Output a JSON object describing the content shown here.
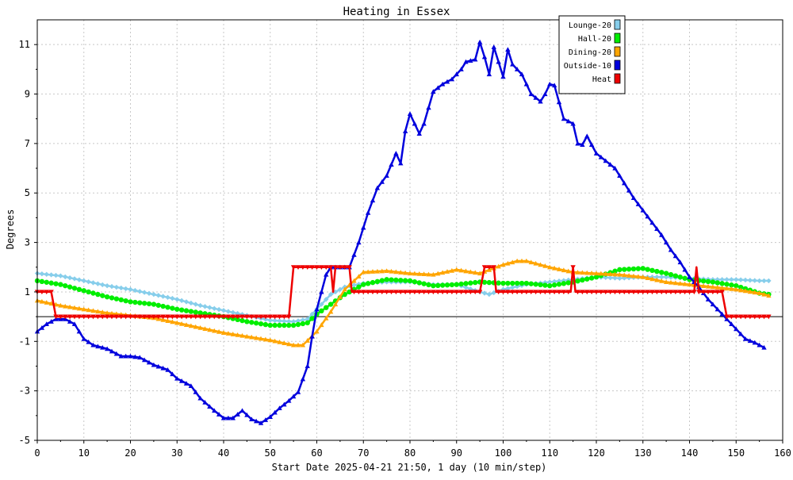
{
  "chart_data": {
    "type": "line",
    "title": "Heating in Essex",
    "xlabel": "Start Date 2025-04-21 21:50, 1 day (10 min/step)",
    "ylabel": "Degrees",
    "xlim": [
      0,
      160
    ],
    "ylim": [
      -5,
      12
    ],
    "x_ticks": [
      0,
      10,
      20,
      30,
      40,
      50,
      60,
      70,
      80,
      90,
      100,
      110,
      120,
      130,
      140,
      150,
      160
    ],
    "y_ticks": [
      -5,
      -3,
      -1,
      1,
      3,
      5,
      7,
      9,
      11
    ],
    "grid": true,
    "zero_line": true,
    "legend_position": "top-right",
    "series": [
      {
        "name": "Lounge-20",
        "color": "#87ceeb",
        "marker": "diamond",
        "points": [
          [
            0,
            1.75
          ],
          [
            5,
            1.65
          ],
          [
            10,
            1.45
          ],
          [
            15,
            1.25
          ],
          [
            20,
            1.1
          ],
          [
            25,
            0.9
          ],
          [
            30,
            0.7
          ],
          [
            35,
            0.45
          ],
          [
            40,
            0.25
          ],
          [
            45,
            0.05
          ],
          [
            50,
            -0.15
          ],
          [
            55,
            -0.2
          ],
          [
            58,
            -0.1
          ],
          [
            60,
            0.3
          ],
          [
            63,
            0.9
          ],
          [
            66,
            1.2
          ],
          [
            70,
            1.35
          ],
          [
            75,
            1.4
          ],
          [
            80,
            1.4
          ],
          [
            85,
            1.3
          ],
          [
            90,
            1.3
          ],
          [
            95,
            1.0
          ],
          [
            97,
            0.9
          ],
          [
            100,
            1.1
          ],
          [
            105,
            1.3
          ],
          [
            110,
            1.4
          ],
          [
            115,
            1.5
          ],
          [
            120,
            1.6
          ],
          [
            125,
            1.55
          ],
          [
            130,
            1.6
          ],
          [
            135,
            1.6
          ],
          [
            140,
            1.55
          ],
          [
            145,
            1.5
          ],
          [
            150,
            1.5
          ],
          [
            155,
            1.45
          ],
          [
            157,
            1.45
          ]
        ]
      },
      {
        "name": "Hall-20",
        "color": "#00ee00",
        "marker": "circle",
        "points": [
          [
            0,
            1.45
          ],
          [
            5,
            1.3
          ],
          [
            10,
            1.05
          ],
          [
            15,
            0.8
          ],
          [
            20,
            0.6
          ],
          [
            25,
            0.5
          ],
          [
            30,
            0.3
          ],
          [
            35,
            0.15
          ],
          [
            40,
            0.0
          ],
          [
            45,
            -0.2
          ],
          [
            50,
            -0.35
          ],
          [
            55,
            -0.35
          ],
          [
            58,
            -0.25
          ],
          [
            60,
            0.1
          ],
          [
            63,
            0.5
          ],
          [
            66,
            0.9
          ],
          [
            70,
            1.3
          ],
          [
            75,
            1.5
          ],
          [
            80,
            1.45
          ],
          [
            85,
            1.25
          ],
          [
            90,
            1.3
          ],
          [
            95,
            1.4
          ],
          [
            100,
            1.35
          ],
          [
            105,
            1.35
          ],
          [
            110,
            1.25
          ],
          [
            115,
            1.4
          ],
          [
            120,
            1.6
          ],
          [
            125,
            1.9
          ],
          [
            130,
            1.95
          ],
          [
            135,
            1.75
          ],
          [
            140,
            1.5
          ],
          [
            145,
            1.4
          ],
          [
            150,
            1.25
          ],
          [
            155,
            0.95
          ],
          [
            157,
            0.9
          ]
        ]
      },
      {
        "name": "Dining-20",
        "color": "#ffa500",
        "marker": "triangle",
        "points": [
          [
            0,
            0.65
          ],
          [
            5,
            0.45
          ],
          [
            10,
            0.3
          ],
          [
            15,
            0.15
          ],
          [
            20,
            0.05
          ],
          [
            25,
            -0.05
          ],
          [
            30,
            -0.25
          ],
          [
            35,
            -0.45
          ],
          [
            40,
            -0.65
          ],
          [
            45,
            -0.8
          ],
          [
            50,
            -0.95
          ],
          [
            55,
            -1.15
          ],
          [
            57,
            -1.15
          ],
          [
            60,
            -0.6
          ],
          [
            63,
            0.2
          ],
          [
            66,
            1.1
          ],
          [
            70,
            1.8
          ],
          [
            75,
            1.85
          ],
          [
            80,
            1.75
          ],
          [
            85,
            1.7
          ],
          [
            90,
            1.9
          ],
          [
            95,
            1.75
          ],
          [
            100,
            2.1
          ],
          [
            103,
            2.25
          ],
          [
            105,
            2.25
          ],
          [
            110,
            2.0
          ],
          [
            115,
            1.8
          ],
          [
            120,
            1.75
          ],
          [
            125,
            1.7
          ],
          [
            130,
            1.6
          ],
          [
            135,
            1.4
          ],
          [
            140,
            1.3
          ],
          [
            145,
            1.2
          ],
          [
            150,
            1.1
          ],
          [
            155,
            0.95
          ],
          [
            157,
            0.85
          ]
        ]
      },
      {
        "name": "Outside-10",
        "color": "#0000dd",
        "marker": "triangle",
        "points": [
          [
            0,
            -0.6
          ],
          [
            2,
            -0.3
          ],
          [
            4,
            -0.1
          ],
          [
            6,
            -0.1
          ],
          [
            8,
            -0.3
          ],
          [
            10,
            -0.9
          ],
          [
            12,
            -1.15
          ],
          [
            15,
            -1.3
          ],
          [
            18,
            -1.6
          ],
          [
            20,
            -1.6
          ],
          [
            22,
            -1.65
          ],
          [
            25,
            -1.95
          ],
          [
            28,
            -2.15
          ],
          [
            30,
            -2.5
          ],
          [
            33,
            -2.8
          ],
          [
            35,
            -3.3
          ],
          [
            38,
            -3.8
          ],
          [
            40,
            -4.1
          ],
          [
            42,
            -4.1
          ],
          [
            44,
            -3.8
          ],
          [
            46,
            -4.15
          ],
          [
            48,
            -4.3
          ],
          [
            50,
            -4.05
          ],
          [
            52,
            -3.7
          ],
          [
            54,
            -3.4
          ],
          [
            56,
            -3.05
          ],
          [
            58,
            -2.0
          ],
          [
            59,
            -0.8
          ],
          [
            60,
            0.3
          ],
          [
            61,
            1.0
          ],
          [
            62,
            1.7
          ],
          [
            63,
            2.0
          ],
          [
            65,
            2.0
          ],
          [
            67,
            2.0
          ],
          [
            69,
            3.0
          ],
          [
            71,
            4.2
          ],
          [
            73,
            5.2
          ],
          [
            75,
            5.7
          ],
          [
            77,
            6.6
          ],
          [
            78,
            6.2
          ],
          [
            79,
            7.5
          ],
          [
            80,
            8.2
          ],
          [
            82,
            7.4
          ],
          [
            83,
            7.8
          ],
          [
            85,
            9.1
          ],
          [
            87,
            9.4
          ],
          [
            89,
            9.6
          ],
          [
            91,
            10.0
          ],
          [
            92,
            10.3
          ],
          [
            94,
            10.4
          ],
          [
            95,
            11.1
          ],
          [
            96,
            10.5
          ],
          [
            97,
            9.8
          ],
          [
            98,
            10.9
          ],
          [
            100,
            9.7
          ],
          [
            101,
            10.8
          ],
          [
            102,
            10.2
          ],
          [
            104,
            9.8
          ],
          [
            106,
            9.0
          ],
          [
            108,
            8.7
          ],
          [
            109,
            9.0
          ],
          [
            110,
            9.4
          ],
          [
            111,
            9.35
          ],
          [
            113,
            8.0
          ],
          [
            115,
            7.8
          ],
          [
            116,
            7.0
          ],
          [
            117,
            6.95
          ],
          [
            118,
            7.3
          ],
          [
            120,
            6.6
          ],
          [
            122,
            6.3
          ],
          [
            124,
            6.0
          ],
          [
            126,
            5.4
          ],
          [
            128,
            4.8
          ],
          [
            130,
            4.3
          ],
          [
            132,
            3.8
          ],
          [
            134,
            3.3
          ],
          [
            136,
            2.7
          ],
          [
            138,
            2.2
          ],
          [
            140,
            1.6
          ],
          [
            142,
            1.2
          ],
          [
            144,
            0.7
          ],
          [
            146,
            0.3
          ],
          [
            148,
            -0.1
          ],
          [
            150,
            -0.5
          ],
          [
            152,
            -0.9
          ],
          [
            154,
            -1.05
          ],
          [
            156,
            -1.25
          ]
        ]
      },
      {
        "name": "Heat",
        "color": "#ee0000",
        "marker": "triangle-down",
        "points": [
          [
            0,
            1.0
          ],
          [
            3,
            1.0
          ],
          [
            4,
            0.0
          ],
          [
            54,
            0.0
          ],
          [
            55,
            2.0
          ],
          [
            63,
            2.0
          ],
          [
            63.5,
            1.0
          ],
          [
            64,
            2.0
          ],
          [
            67,
            2.0
          ],
          [
            67.5,
            1.0
          ],
          [
            95,
            1.0
          ],
          [
            96,
            2.0
          ],
          [
            98,
            2.0
          ],
          [
            98.5,
            1.0
          ],
          [
            114.5,
            1.0
          ],
          [
            115,
            2.0
          ],
          [
            115.5,
            1.0
          ],
          [
            141,
            1.0
          ],
          [
            141.5,
            2.0
          ],
          [
            142,
            1.0
          ],
          [
            147,
            1.0
          ],
          [
            148,
            0.0
          ],
          [
            157,
            0.0
          ]
        ]
      }
    ]
  }
}
